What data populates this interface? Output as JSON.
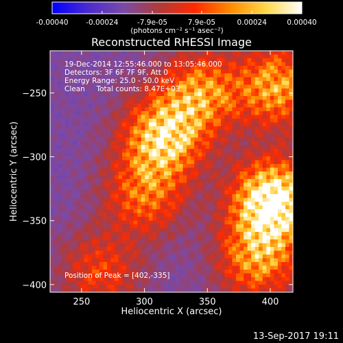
{
  "chart_data": {
    "type": "heatmap",
    "title": "Reconstructed RHESSI Image",
    "xlabel": "Heliocentric X (arcsec)",
    "ylabel": "Heliocentric Y (arcsec)",
    "xlim": [
      225,
      418
    ],
    "ylim": [
      -406,
      -217
    ],
    "x_ticks": [
      250,
      300,
      350,
      400
    ],
    "y_ticks": [
      -250,
      -300,
      -350,
      -400
    ],
    "colorbar": {
      "range": [
        -0.0004,
        0.0004
      ],
      "tick_values": [
        -0.0004,
        -0.00024,
        -7.9e-05,
        7.9e-05,
        0.00024,
        0.0004
      ],
      "tick_labels": [
        "-0.00040",
        "-0.00024",
        "-7.9e-05",
        "7.9e-05",
        "0.00024",
        "0.00040"
      ],
      "unit_label": "(photons cm⁻² s⁻¹ asec⁻²)",
      "colors": [
        "#0000ff",
        "#4b2bd0",
        "#7a4aa8",
        "#b03a3a",
        "#ff2a00",
        "#ff8a00",
        "#ffd84a",
        "#ffffff"
      ]
    },
    "annotations": {
      "time": "19-Dec-2014 12:55:46.000 to 13:05:46.000",
      "detectors": "Detectors: 3F 6F 7F 9F, Att 0",
      "energy": "Energy Range: 25.0 - 50.0 keV",
      "clean": "Clean     Total counts: 8.47E+03",
      "peak": "Position of Peak = [402,-335]"
    },
    "peak": {
      "x": 402,
      "y": -335
    },
    "bright_regions": [
      {
        "x": 315,
        "y": -285,
        "intensity": 0.75
      },
      {
        "x": 345,
        "y": -250,
        "intensity": 0.55
      },
      {
        "x": 300,
        "y": -330,
        "intensity": 0.45
      },
      {
        "x": 402,
        "y": -335,
        "intensity": 1.0
      },
      {
        "x": 390,
        "y": -380,
        "intensity": 0.55
      },
      {
        "x": 405,
        "y": -245,
        "intensity": 0.6
      },
      {
        "x": 265,
        "y": -390,
        "intensity": 0.35
      }
    ]
  },
  "footer": {
    "date": "13-Sep-2017 19:11"
  },
  "colors": {
    "background": "#000000",
    "foreground": "#ffffff"
  }
}
